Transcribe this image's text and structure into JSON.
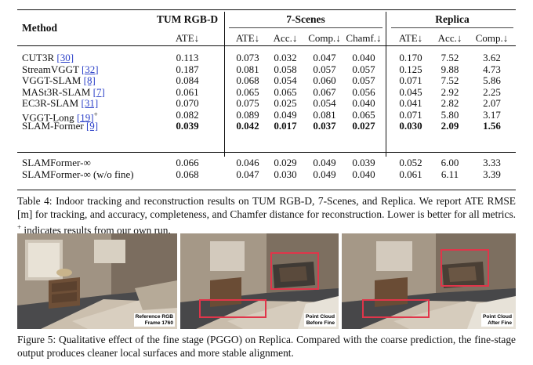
{
  "table": {
    "method_header": "Method",
    "groups": [
      "TUM RGB-D",
      "7-Scenes",
      "Replica"
    ],
    "columns": [
      "ATE↓",
      "ATE↓",
      "Acc.↓",
      "Comp.↓",
      "Chamf.↓",
      "ATE↓",
      "Acc.↓",
      "Comp.↓"
    ],
    "rows": [
      {
        "name": "CUT3R",
        "ref": "[30]",
        "sup": "",
        "values": [
          "0.113",
          "0.073",
          "0.032",
          "0.047",
          "0.040",
          "0.170",
          "7.52",
          "3.62"
        ],
        "bold": [
          false,
          false,
          false,
          false,
          false,
          false,
          false,
          false
        ]
      },
      {
        "name": "StreamVGGT",
        "ref": "[32]",
        "sup": "",
        "values": [
          "0.187",
          "0.081",
          "0.058",
          "0.057",
          "0.057",
          "0.125",
          "9.88",
          "4.73"
        ],
        "bold": [
          false,
          false,
          false,
          false,
          false,
          false,
          false,
          false
        ]
      },
      {
        "name": "VGGT-SLAM",
        "ref": "[8]",
        "sup": "",
        "values": [
          "0.084",
          "0.068",
          "0.054",
          "0.060",
          "0.057",
          "0.071",
          "7.52",
          "5.86"
        ],
        "bold": [
          false,
          false,
          false,
          false,
          false,
          false,
          false,
          false
        ]
      },
      {
        "name": "MASt3R-SLAM",
        "ref": "[7]",
        "sup": "",
        "values": [
          "0.061",
          "0.065",
          "0.065",
          "0.067",
          "0.056",
          "0.045",
          "2.92",
          "2.25"
        ],
        "bold": [
          false,
          false,
          false,
          false,
          false,
          false,
          false,
          false
        ]
      },
      {
        "name": "EC3R-SLAM",
        "ref": "[31]",
        "sup": "",
        "values": [
          "0.070",
          "0.075",
          "0.025",
          "0.054",
          "0.040",
          "0.041",
          "2.82",
          "2.07"
        ],
        "bold": [
          false,
          false,
          false,
          false,
          false,
          false,
          false,
          false
        ]
      },
      {
        "name": "VGGT-Long",
        "ref": "[19]",
        "sup": "+",
        "values": [
          "0.082",
          "0.089",
          "0.049",
          "0.081",
          "0.065",
          "0.071",
          "5.80",
          "3.17"
        ],
        "bold": [
          false,
          false,
          false,
          false,
          false,
          false,
          false,
          false
        ]
      },
      {
        "name": "SLAM-Former",
        "ref": "[9]",
        "sup": "",
        "values": [
          "0.039",
          "0.042",
          "0.017",
          "0.037",
          "0.027",
          "0.030",
          "2.09",
          "1.56"
        ],
        "bold": [
          true,
          true,
          true,
          true,
          true,
          true,
          true,
          true
        ]
      },
      {
        "name": "SLAMFormer-∞",
        "ref": "",
        "sup": "",
        "values": [
          "0.066",
          "0.046",
          "0.029",
          "0.049",
          "0.039",
          "0.052",
          "6.00",
          "3.33"
        ],
        "bold": [
          false,
          false,
          false,
          false,
          false,
          false,
          false,
          false
        ]
      },
      {
        "name": "SLAMFormer-∞ (w/o fine)",
        "ref": "",
        "sup": "",
        "values": [
          "0.068",
          "0.047",
          "0.030",
          "0.049",
          "0.040",
          "0.061",
          "6.11",
          "3.39"
        ],
        "bold": [
          false,
          false,
          false,
          false,
          false,
          false,
          false,
          false
        ]
      }
    ]
  },
  "table_caption": {
    "part1": "Table 4: Indoor tracking and reconstruction results on TUM RGB-D, 7-Scenes, and Replica. We report ATE RMSE [m] for tracking, and accuracy, completeness, and Chamfer distance for reconstruction. Lower is better for all metrics. ",
    "sup": "+",
    "part2": " indicates results from our own run."
  },
  "figure": {
    "panels": [
      {
        "label_line1": "Reference RGB",
        "label_line2": "Frame 1760"
      },
      {
        "label_line1": "Point Cloud",
        "label_line2": "Before Fine"
      },
      {
        "label_line1": "Point Cloud",
        "label_line2": "After Fine"
      }
    ],
    "highlight_color": "#e0354a"
  },
  "figure_caption": "Figure 5: Qualitative effect of the fine stage (PGGO) on Replica. Compared with the coarse prediction, the fine-stage output produces cleaner local surfaces and more stable alignment."
}
